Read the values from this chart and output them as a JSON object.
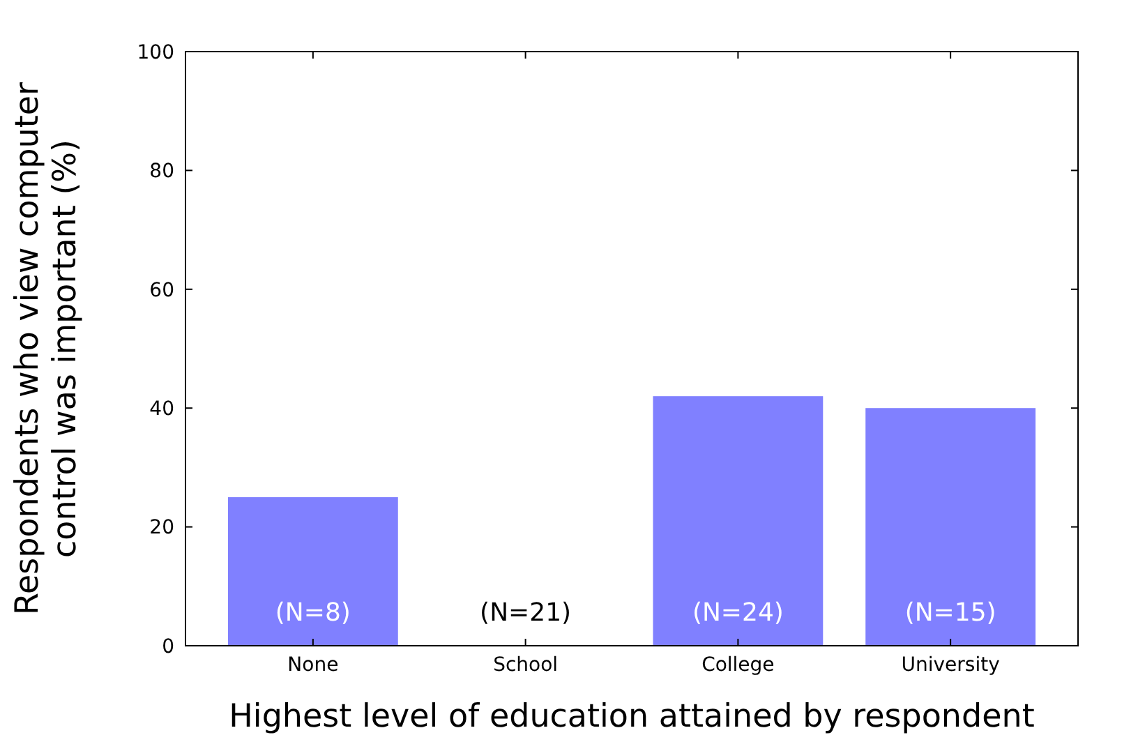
{
  "chart_data": {
    "type": "bar",
    "xlabel": "Highest level of education attained by respondent",
    "ylabel": "Respondents who view computer\ncontrol was important (%)",
    "categories": [
      "None",
      "School",
      "College",
      "University"
    ],
    "values": [
      25,
      0,
      42,
      40
    ],
    "color": "#8080ff",
    "ylim": [
      0,
      100
    ],
    "yticks": [
      0,
      20,
      40,
      60,
      80,
      100
    ],
    "grid": false,
    "annotations": [
      "(N=8)",
      "(N=21)",
      "(N=24)",
      "(N=15)"
    ]
  }
}
